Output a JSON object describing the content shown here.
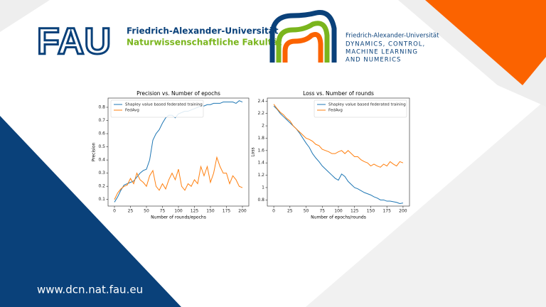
{
  "header": {
    "logo_text": "FAU",
    "university": "Friedrich-Alexander-Universität",
    "faculty": "Naturwissenschaftliche Fakultät",
    "chair_university": "Friedrich-Alexander-Universität",
    "chair_lines": [
      "DYNAMICS, CONTROL,",
      "MACHINE LEARNING",
      "AND NUMERICS"
    ]
  },
  "footer": {
    "url": "www.dcn.nat.fau.eu"
  },
  "chart_data": [
    {
      "type": "line",
      "title": "Precision vs. Number of epochs",
      "xlabel": "Number of rounds/epochs",
      "ylabel": "Precision",
      "legend": "upper left",
      "x": [
        0,
        5,
        10,
        15,
        20,
        25,
        30,
        35,
        40,
        45,
        50,
        55,
        60,
        65,
        70,
        75,
        80,
        85,
        90,
        95,
        100,
        105,
        110,
        115,
        120,
        125,
        130,
        135,
        140,
        145,
        150,
        155,
        160,
        165,
        170,
        175,
        180,
        185,
        190,
        195,
        200
      ],
      "xlim": [
        -10,
        210
      ],
      "xticks": [
        0,
        25,
        50,
        75,
        100,
        125,
        150,
        175,
        200
      ],
      "ylim": [
        0.05,
        0.87
      ],
      "yticks": [
        0.1,
        0.2,
        0.3,
        0.4,
        0.5,
        0.6,
        0.7,
        0.8
      ],
      "series": [
        {
          "name": "Shapley value based federated training",
          "color": "#1f77b4",
          "values": [
            0.08,
            0.12,
            0.17,
            0.21,
            0.22,
            0.23,
            0.24,
            0.27,
            0.3,
            0.32,
            0.33,
            0.4,
            0.55,
            0.6,
            0.63,
            0.68,
            0.72,
            0.74,
            0.74,
            0.72,
            0.75,
            0.76,
            0.77,
            0.77,
            0.78,
            0.79,
            0.8,
            0.81,
            0.81,
            0.82,
            0.82,
            0.83,
            0.83,
            0.83,
            0.84,
            0.84,
            0.84,
            0.84,
            0.83,
            0.85,
            0.84
          ]
        },
        {
          "name": "FedAvg",
          "color": "#ff7f0e",
          "values": [
            0.1,
            0.15,
            0.18,
            0.2,
            0.21,
            0.26,
            0.22,
            0.3,
            0.25,
            0.23,
            0.2,
            0.28,
            0.32,
            0.2,
            0.17,
            0.22,
            0.18,
            0.25,
            0.3,
            0.25,
            0.33,
            0.2,
            0.17,
            0.22,
            0.2,
            0.25,
            0.22,
            0.35,
            0.28,
            0.35,
            0.23,
            0.3,
            0.42,
            0.35,
            0.3,
            0.3,
            0.22,
            0.28,
            0.25,
            0.2,
            0.19
          ]
        }
      ]
    },
    {
      "type": "line",
      "title": "Loss vs. Number of rounds",
      "xlabel": "Number of epochs/rounds",
      "ylabel": "Loss",
      "legend": "upper right",
      "x": [
        0,
        5,
        10,
        15,
        20,
        25,
        30,
        35,
        40,
        45,
        50,
        55,
        60,
        65,
        70,
        75,
        80,
        85,
        90,
        95,
        100,
        105,
        110,
        115,
        120,
        125,
        130,
        135,
        140,
        145,
        150,
        155,
        160,
        165,
        170,
        175,
        180,
        185,
        190,
        195,
        200
      ],
      "xlim": [
        -10,
        210
      ],
      "xticks": [
        0,
        25,
        50,
        75,
        100,
        125,
        150,
        175,
        200
      ],
      "ylim": [
        0.7,
        2.45
      ],
      "yticks": [
        0.8,
        1.0,
        1.2,
        1.4,
        1.6,
        1.8,
        2.0,
        2.2,
        2.4
      ],
      "series": [
        {
          "name": "Shapley value based federated training",
          "color": "#1f77b4",
          "values": [
            2.32,
            2.27,
            2.2,
            2.15,
            2.1,
            2.05,
            2.0,
            1.95,
            1.88,
            1.8,
            1.72,
            1.65,
            1.55,
            1.48,
            1.42,
            1.35,
            1.3,
            1.25,
            1.2,
            1.15,
            1.12,
            1.22,
            1.18,
            1.1,
            1.05,
            1.0,
            0.98,
            0.95,
            0.92,
            0.9,
            0.88,
            0.85,
            0.83,
            0.8,
            0.8,
            0.78,
            0.78,
            0.77,
            0.76,
            0.74,
            0.75
          ]
        },
        {
          "name": "FedAvg",
          "color": "#ff7f0e",
          "values": [
            2.35,
            2.28,
            2.22,
            2.18,
            2.12,
            2.08,
            2.0,
            1.95,
            1.9,
            1.85,
            1.8,
            1.78,
            1.75,
            1.7,
            1.68,
            1.62,
            1.6,
            1.58,
            1.55,
            1.55,
            1.58,
            1.6,
            1.55,
            1.6,
            1.55,
            1.5,
            1.5,
            1.45,
            1.42,
            1.4,
            1.35,
            1.38,
            1.35,
            1.33,
            1.38,
            1.35,
            1.42,
            1.38,
            1.35,
            1.42,
            1.4
          ]
        }
      ]
    }
  ]
}
